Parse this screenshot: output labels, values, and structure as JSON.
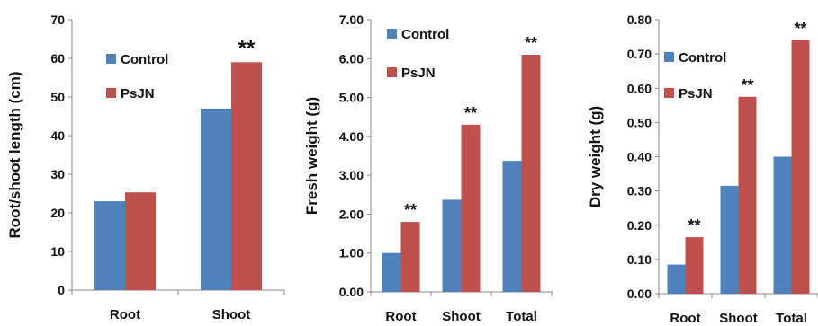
{
  "colors": {
    "control": "#4f81bd",
    "psjn": "#c0504d"
  },
  "chart_data": [
    {
      "type": "bar",
      "title": "",
      "xlabel": "",
      "ylabel": "Root/shoot length (cm)",
      "ylim": [
        0,
        70
      ],
      "yticks": [
        "0",
        "10",
        "20",
        "30",
        "40",
        "50",
        "60",
        "70"
      ],
      "tick_values": [
        0,
        10,
        20,
        30,
        40,
        50,
        60,
        70
      ],
      "categories": [
        "Root",
        "Shoot"
      ],
      "series": [
        {
          "name": "Control",
          "values": [
            23,
            47
          ]
        },
        {
          "name": "PsJN",
          "values": [
            25.3,
            59
          ]
        }
      ],
      "significance": [
        "",
        "**"
      ],
      "legend_position": "middle-left",
      "grid": false
    },
    {
      "type": "bar",
      "title": "",
      "xlabel": "",
      "ylabel": "Fresh weight (g)",
      "ylim": [
        0,
        7
      ],
      "yticks": [
        "0.00",
        "1.00",
        "2.00",
        "3.00",
        "4.00",
        "5.00",
        "6.00",
        "7.00"
      ],
      "tick_values": [
        0,
        1,
        2,
        3,
        4,
        5,
        6,
        7
      ],
      "categories": [
        "Root",
        "Shoot",
        "Total"
      ],
      "series": [
        {
          "name": "Control",
          "values": [
            1.0,
            2.37,
            3.37
          ]
        },
        {
          "name": "PsJN",
          "values": [
            1.8,
            4.3,
            6.1
          ]
        }
      ],
      "significance": [
        "**",
        "**",
        "**"
      ],
      "legend_position": "top-left",
      "grid": false
    },
    {
      "type": "bar",
      "title": "",
      "xlabel": "",
      "ylabel": "Dry weight (g)",
      "ylim": [
        0,
        0.8
      ],
      "yticks": [
        "0.00",
        "0.10",
        "0.20",
        "0.30",
        "0.40",
        "0.50",
        "0.60",
        "0.70",
        "0.80"
      ],
      "tick_values": [
        0,
        0.1,
        0.2,
        0.3,
        0.4,
        0.5,
        0.6,
        0.7,
        0.8
      ],
      "categories": [
        "Root",
        "Shoot",
        "Total"
      ],
      "series": [
        {
          "name": "Control",
          "values": [
            0.085,
            0.315,
            0.4
          ]
        },
        {
          "name": "PsJN",
          "values": [
            0.165,
            0.575,
            0.74
          ]
        }
      ],
      "significance": [
        "**",
        "**",
        "**"
      ],
      "legend_position": "top-left",
      "grid": false
    }
  ]
}
